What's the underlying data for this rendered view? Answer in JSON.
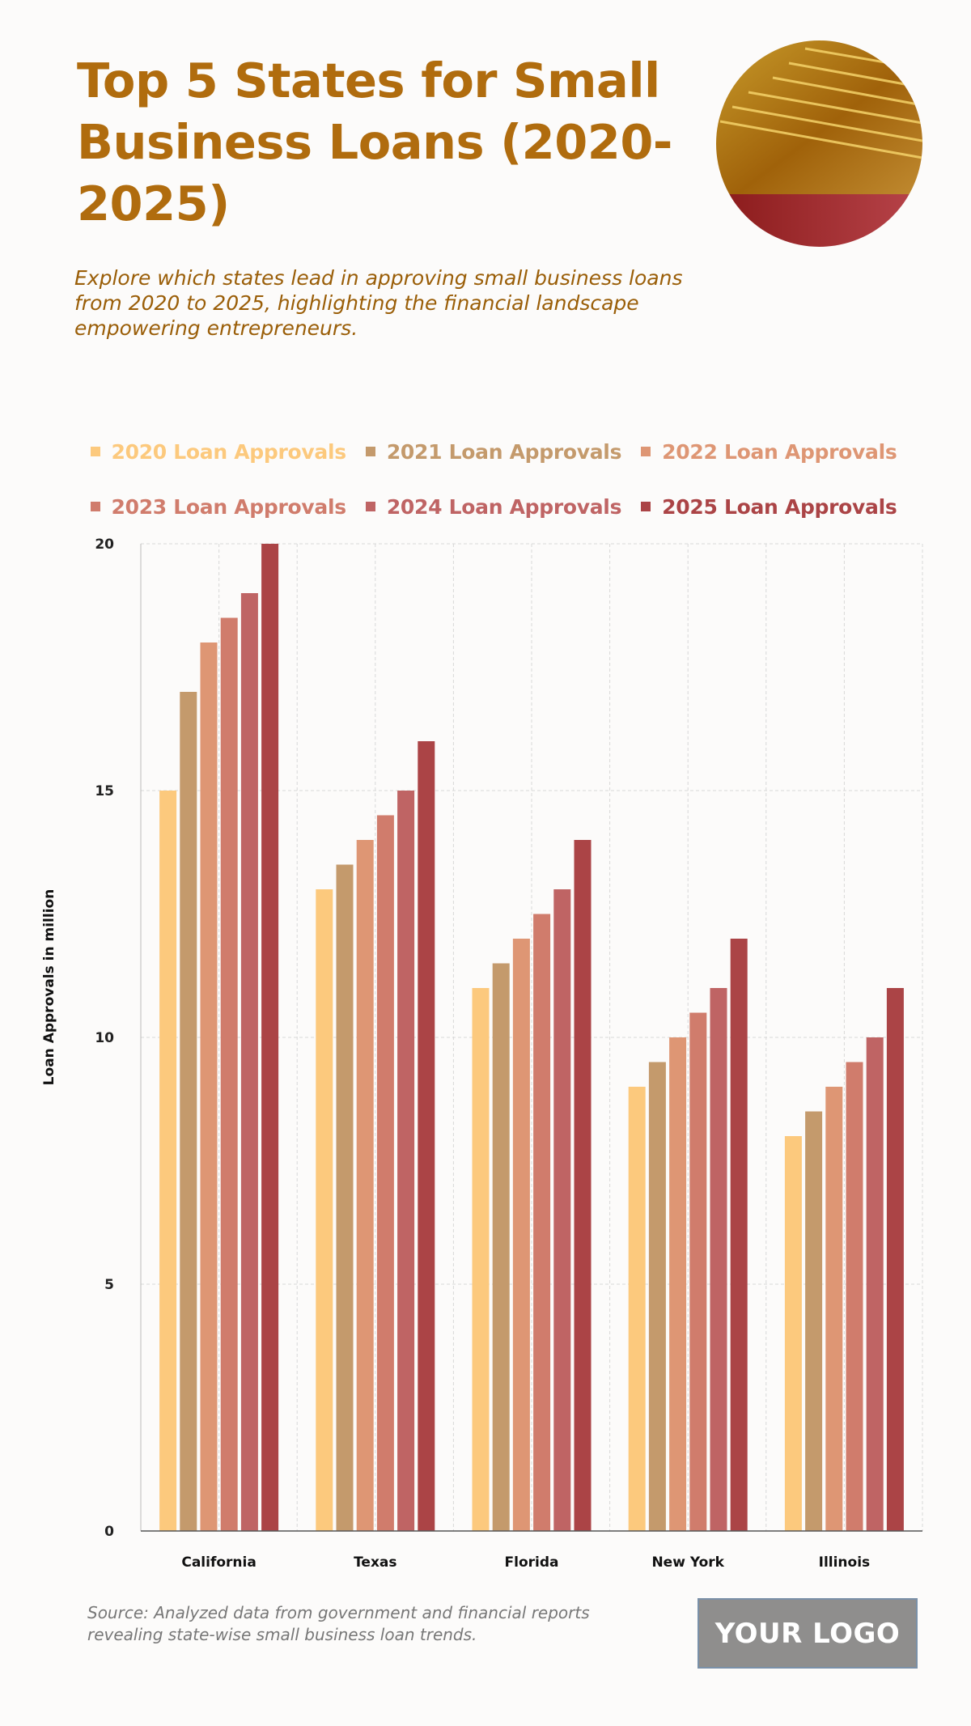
{
  "header": {
    "title": "Top 5 States for Small Business Loans (2020-2025)",
    "subtitle": "Explore which states lead in approving small business loans from 2020 to 2025, highlighting the financial landscape empowering entrepreneurs."
  },
  "colors": {
    "title": "#b06c0e",
    "series": [
      "#fcc97d",
      "#c49a6c",
      "#de9674",
      "#d07c6c",
      "#bf6464",
      "#ab4446"
    ]
  },
  "chart_data": {
    "type": "bar",
    "title": "Top 5 States for Small Business Loans (2020-2025)",
    "xlabel": "",
    "ylabel": "Loan Approvals in million",
    "ylim": [
      0,
      20
    ],
    "yticks": [
      "0",
      "5",
      "10",
      "15",
      "20"
    ],
    "grid": true,
    "legend_position": "top",
    "categories": [
      "California",
      "Texas",
      "Florida",
      "New York",
      "Illinois"
    ],
    "series": [
      {
        "name": "2020 Loan Approvals",
        "values": [
          15,
          13,
          11,
          9,
          8
        ]
      },
      {
        "name": "2021 Loan Approvals",
        "values": [
          17,
          13.5,
          11.5,
          9.5,
          8.5
        ]
      },
      {
        "name": "2022 Loan Approvals",
        "values": [
          18,
          14,
          12,
          10,
          9
        ]
      },
      {
        "name": "2023 Loan Approvals",
        "values": [
          18.5,
          14.5,
          12.5,
          10.5,
          9.5
        ]
      },
      {
        "name": "2024 Loan Approvals",
        "values": [
          19,
          15,
          13,
          11,
          10
        ]
      },
      {
        "name": "2025 Loan Approvals",
        "values": [
          20,
          16,
          14,
          12,
          11
        ]
      }
    ]
  },
  "footer": {
    "source": "Source: Analyzed data from government and financial reports revealing state-wise small business loan trends.",
    "logo_text": "YOUR LOGO"
  }
}
